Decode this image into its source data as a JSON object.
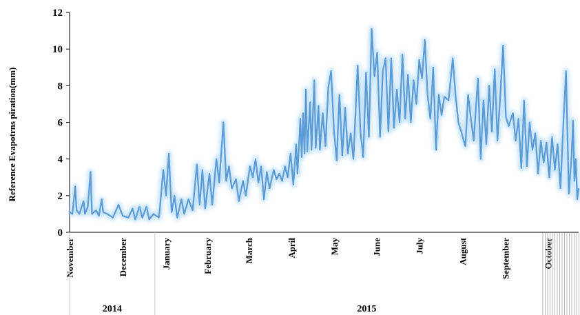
{
  "chart_data": {
    "type": "line",
    "title": "",
    "xlabel": "",
    "ylabel": "Reference Evapotrns piration(mm)",
    "ylim": [
      0,
      12
    ],
    "yticks": [
      "0",
      "2",
      "4",
      "6",
      "8",
      "10",
      "12"
    ],
    "grid": false,
    "legend": "none",
    "line_color": "#5b9bd5",
    "glow_color": "#9ed0f5",
    "x_range": [
      "2014-11-01",
      "2015-10-31"
    ],
    "months": [
      "November",
      "December",
      "January",
      "February",
      "March",
      "April",
      "May",
      "June",
      "July",
      "August",
      "September",
      "October"
    ],
    "years": [
      "2014",
      "2015"
    ],
    "series": [
      {
        "anchors": [
          [
            "2014-11-01",
            1.1
          ],
          [
            "2014-11-03",
            1.0
          ],
          [
            "2014-11-05",
            2.5
          ],
          [
            "2014-11-06",
            1.2
          ],
          [
            "2014-11-08",
            1.0
          ],
          [
            "2014-11-11",
            1.7
          ],
          [
            "2014-11-12",
            1.0
          ],
          [
            "2014-11-14",
            1.4
          ],
          [
            "2014-11-16",
            3.3
          ],
          [
            "2014-11-17",
            1.0
          ],
          [
            "2014-11-20",
            1.2
          ],
          [
            "2014-11-22",
            0.9
          ],
          [
            "2014-11-24",
            1.8
          ],
          [
            "2014-11-25",
            1.1
          ],
          [
            "2014-11-28",
            1.0
          ],
          [
            "2014-12-02",
            0.8
          ],
          [
            "2014-12-06",
            1.5
          ],
          [
            "2014-12-09",
            0.9
          ],
          [
            "2014-12-13",
            0.8
          ],
          [
            "2014-12-16",
            1.3
          ],
          [
            "2014-12-18",
            0.7
          ],
          [
            "2014-12-21",
            1.4
          ],
          [
            "2014-12-23",
            0.8
          ],
          [
            "2014-12-26",
            1.4
          ],
          [
            "2014-12-28",
            0.7
          ],
          [
            "2014-12-31",
            1.0
          ],
          [
            "2015-01-04",
            0.8
          ],
          [
            "2015-01-07",
            3.4
          ],
          [
            "2015-01-09",
            2.0
          ],
          [
            "2015-01-11",
            4.3
          ],
          [
            "2015-01-13",
            1.1
          ],
          [
            "2015-01-15",
            2.0
          ],
          [
            "2015-01-17",
            0.8
          ],
          [
            "2015-01-20",
            1.8
          ],
          [
            "2015-01-22",
            1.0
          ],
          [
            "2015-01-25",
            1.8
          ],
          [
            "2015-01-28",
            1.2
          ],
          [
            "2015-01-31",
            3.7
          ],
          [
            "2015-02-02",
            1.5
          ],
          [
            "2015-02-04",
            3.4
          ],
          [
            "2015-02-06",
            1.3
          ],
          [
            "2015-02-09",
            3.2
          ],
          [
            "2015-02-11",
            1.5
          ],
          [
            "2015-02-14",
            4.0
          ],
          [
            "2015-02-16",
            2.7
          ],
          [
            "2015-02-19",
            6.0
          ],
          [
            "2015-02-21",
            2.8
          ],
          [
            "2015-02-23",
            3.6
          ],
          [
            "2015-02-25",
            2.4
          ],
          [
            "2015-02-28",
            2.9
          ],
          [
            "2015-03-02",
            1.7
          ],
          [
            "2015-03-05",
            2.8
          ],
          [
            "2015-03-07",
            2.0
          ],
          [
            "2015-03-10",
            3.6
          ],
          [
            "2015-03-12",
            3.0
          ],
          [
            "2015-03-14",
            4.0
          ],
          [
            "2015-03-16",
            2.7
          ],
          [
            "2015-03-18",
            3.6
          ],
          [
            "2015-03-20",
            1.8
          ],
          [
            "2015-03-22",
            3.3
          ],
          [
            "2015-03-24",
            2.4
          ],
          [
            "2015-03-27",
            3.4
          ],
          [
            "2015-03-29",
            2.9
          ],
          [
            "2015-03-31",
            3.2
          ],
          [
            "2015-04-02",
            2.8
          ],
          [
            "2015-04-04",
            3.6
          ],
          [
            "2015-04-06",
            3.0
          ],
          [
            "2015-04-08",
            4.3
          ],
          [
            "2015-04-10",
            2.6
          ],
          [
            "2015-04-12",
            4.8
          ],
          [
            "2015-04-13",
            3.2
          ],
          [
            "2015-04-15",
            6.2
          ],
          [
            "2015-04-16",
            4.1
          ],
          [
            "2015-04-17",
            6.5
          ],
          [
            "2015-04-18",
            4.3
          ],
          [
            "2015-04-19",
            7.8
          ],
          [
            "2015-04-20",
            4.4
          ],
          [
            "2015-04-22",
            7.1
          ],
          [
            "2015-04-23",
            4.5
          ],
          [
            "2015-04-25",
            8.3
          ],
          [
            "2015-04-26",
            4.6
          ],
          [
            "2015-04-28",
            6.9
          ],
          [
            "2015-04-29",
            4.5
          ],
          [
            "2015-05-01",
            6.5
          ],
          [
            "2015-05-03",
            4.7
          ],
          [
            "2015-05-05",
            7.9
          ],
          [
            "2015-05-07",
            8.8
          ],
          [
            "2015-05-09",
            5.6
          ],
          [
            "2015-05-11",
            3.9
          ],
          [
            "2015-05-13",
            7.5
          ],
          [
            "2015-05-15",
            4.2
          ],
          [
            "2015-05-17",
            6.8
          ],
          [
            "2015-05-19",
            4.3
          ],
          [
            "2015-05-21",
            5.4
          ],
          [
            "2015-05-23",
            4.0
          ],
          [
            "2015-05-26",
            9.1
          ],
          [
            "2015-05-28",
            5.5
          ],
          [
            "2015-05-30",
            4.1
          ],
          [
            "2015-06-01",
            8.7
          ],
          [
            "2015-06-03",
            5.2
          ],
          [
            "2015-06-05",
            11.1
          ],
          [
            "2015-06-07",
            8.5
          ],
          [
            "2015-06-09",
            9.8
          ],
          [
            "2015-06-11",
            5.2
          ],
          [
            "2015-06-13",
            8.8
          ],
          [
            "2015-06-15",
            9.5
          ],
          [
            "2015-06-17",
            5.5
          ],
          [
            "2015-06-19",
            9.5
          ],
          [
            "2015-06-21",
            5.7
          ],
          [
            "2015-06-23",
            7.8
          ],
          [
            "2015-06-25",
            6.0
          ],
          [
            "2015-06-27",
            9.7
          ],
          [
            "2015-06-29",
            6.2
          ],
          [
            "2015-07-01",
            8.6
          ],
          [
            "2015-07-03",
            6.0
          ],
          [
            "2015-07-05",
            8.3
          ],
          [
            "2015-07-07",
            7.0
          ],
          [
            "2015-07-09",
            9.4
          ],
          [
            "2015-07-11",
            8.4
          ],
          [
            "2015-07-13",
            10.5
          ],
          [
            "2015-07-15",
            7.5
          ],
          [
            "2015-07-17",
            6.2
          ],
          [
            "2015-07-19",
            9.0
          ],
          [
            "2015-07-21",
            4.5
          ],
          [
            "2015-07-23",
            7.5
          ],
          [
            "2015-07-25",
            6.4
          ],
          [
            "2015-07-27",
            7.4
          ],
          [
            "2015-07-30",
            7.2
          ],
          [
            "2015-08-02",
            9.5
          ],
          [
            "2015-08-04",
            7.5
          ],
          [
            "2015-08-06",
            6.0
          ],
          [
            "2015-08-08",
            5.5
          ],
          [
            "2015-08-11",
            4.7
          ],
          [
            "2015-08-13",
            7.5
          ],
          [
            "2015-08-15",
            6.2
          ],
          [
            "2015-08-17",
            5.0
          ],
          [
            "2015-08-20",
            8.4
          ],
          [
            "2015-08-22",
            4.0
          ],
          [
            "2015-08-24",
            7.2
          ],
          [
            "2015-08-26",
            4.8
          ],
          [
            "2015-08-28",
            8.0
          ],
          [
            "2015-08-30",
            5.5
          ],
          [
            "2015-09-01",
            8.9
          ],
          [
            "2015-09-03",
            5.0
          ],
          [
            "2015-09-05",
            7.5
          ],
          [
            "2015-09-07",
            10.2
          ],
          [
            "2015-09-09",
            6.3
          ],
          [
            "2015-09-11",
            5.8
          ],
          [
            "2015-09-14",
            6.5
          ],
          [
            "2015-09-16",
            5.0
          ],
          [
            "2015-09-18",
            6.2
          ],
          [
            "2015-09-20",
            3.5
          ],
          [
            "2015-09-22",
            7.2
          ],
          [
            "2015-09-24",
            3.6
          ],
          [
            "2015-09-26",
            6.0
          ],
          [
            "2015-09-28",
            4.5
          ],
          [
            "2015-09-30",
            5.4
          ],
          [
            "2015-10-02",
            3.2
          ],
          [
            "2015-10-04",
            5.0
          ],
          [
            "2015-10-06",
            3.8
          ],
          [
            "2015-10-08",
            4.9
          ],
          [
            "2015-10-10",
            3.0
          ],
          [
            "2015-10-12",
            5.2
          ],
          [
            "2015-10-14",
            3.4
          ],
          [
            "2015-10-16",
            4.8
          ],
          [
            "2015-10-18",
            2.4
          ],
          [
            "2015-10-20",
            5.8
          ],
          [
            "2015-10-22",
            8.8
          ],
          [
            "2015-10-24",
            2.1
          ],
          [
            "2015-10-26",
            4.2
          ],
          [
            "2015-10-27",
            6.1
          ],
          [
            "2015-10-28",
            2.8
          ],
          [
            "2015-10-29",
            4.0
          ],
          [
            "2015-10-30",
            1.8
          ],
          [
            "2015-10-31",
            2.4
          ]
        ]
      }
    ]
  }
}
